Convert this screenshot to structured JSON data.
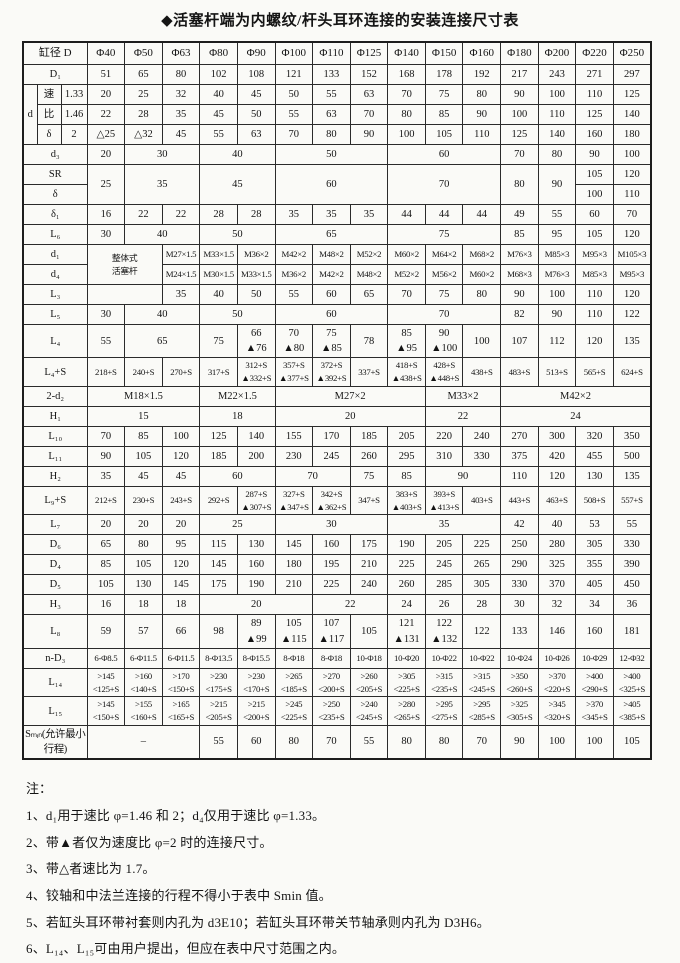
{
  "title": "◆活塞杆端为内螺纹/杆头耳环连接的安装连接尺寸表",
  "table": {
    "rows": [
      {
        "cls": "head",
        "cells": [
          {
            "t": "缸径 D",
            "c": 3
          },
          "Φ40",
          "Φ50",
          "Φ63",
          "Φ80",
          "Φ90",
          "Φ100",
          "Φ110",
          "Φ125",
          "Φ140",
          "Φ150",
          "Φ160",
          "Φ180",
          "Φ200",
          "Φ220",
          "Φ250"
        ]
      },
      {
        "cells": [
          {
            "t": "D₁",
            "c": 3
          },
          "51",
          "65",
          "80",
          "102",
          "108",
          "121",
          "133",
          "152",
          "168",
          "178",
          "192",
          "217",
          "243",
          "271",
          "297"
        ]
      },
      {
        "cells": [
          {
            "t": "d",
            "r": 3
          },
          "速",
          "1.33",
          "20",
          "25",
          "32",
          "40",
          "45",
          "50",
          "55",
          "63",
          "70",
          "75",
          "80",
          "90",
          "100",
          "110",
          "125"
        ]
      },
      {
        "cells": [
          "比",
          "1.46",
          "22",
          "28",
          "35",
          "45",
          "50",
          "55",
          "63",
          "70",
          "80",
          "85",
          "90",
          "100",
          "110",
          "125",
          "140"
        ]
      },
      {
        "cells": [
          "δ",
          "2",
          "△25",
          "△32",
          "45",
          "55",
          "63",
          "70",
          "80",
          "90",
          "100",
          "105",
          "110",
          "125",
          "140",
          "160",
          "180"
        ]
      },
      {
        "cells": [
          {
            "t": "d₃",
            "c": 3
          },
          "20",
          {
            "t": "30",
            "c": 2
          },
          {
            "t": "40",
            "c": 2
          },
          {
            "t": "50",
            "c": 3
          },
          {
            "t": "60",
            "c": 3
          },
          "70",
          "80",
          "90",
          "100"
        ]
      },
      {
        "cells": [
          {
            "t": "SR",
            "c": 3
          },
          {
            "t": "25",
            "r": 2
          },
          {
            "t": "35",
            "c": 2,
            "r": 2
          },
          {
            "t": "45",
            "c": 2,
            "r": 2
          },
          {
            "t": "60",
            "c": 3,
            "r": 2
          },
          {
            "t": "70",
            "c": 3,
            "r": 2
          },
          {
            "t": "80",
            "r": 2
          },
          {
            "t": "90",
            "r": 2
          },
          "105",
          "120"
        ]
      },
      {
        "cells": [
          {
            "t": "δ",
            "c": 3
          },
          "100",
          "110"
        ]
      },
      {
        "cells": [
          {
            "t": "δ₁",
            "c": 3
          },
          "16",
          "22",
          "22",
          "28",
          "28",
          "35",
          "35",
          "35",
          "44",
          "44",
          "44",
          "49",
          "55",
          "60",
          "70"
        ]
      },
      {
        "cells": [
          {
            "t": "L₆",
            "c": 3
          },
          "30",
          {
            "t": "40",
            "c": 2
          },
          {
            "t": "50",
            "c": 2
          },
          {
            "t": "65",
            "c": 3
          },
          {
            "t": "75",
            "c": 3
          },
          "85",
          "95",
          "105",
          "120"
        ]
      },
      {
        "cls": "sm",
        "cells": [
          {
            "t": "d₁",
            "c": 3
          },
          {
            "t": "整体式\n活塞杆",
            "c": 2,
            "r": 2
          },
          "M27×1.5",
          "M33×1.5",
          "M36×2",
          "M42×2",
          "M48×2",
          "M52×2",
          "M60×2",
          "M64×2",
          "M68×2",
          "M76×3",
          "M85×3",
          "M95×3",
          "M105×3"
        ]
      },
      {
        "cls": "sm",
        "cells": [
          {
            "t": "d₄",
            "c": 3
          },
          "M24×1.5",
          "M30×1.5",
          "M33×1.5",
          "M36×2",
          "M42×2",
          "M48×2",
          "M52×2",
          "M56×2",
          "M60×2",
          "M68×3",
          "M76×3",
          "M85×3",
          "M95×3"
        ]
      },
      {
        "cells": [
          {
            "t": "L₃",
            "c": 3
          },
          {
            "t": "",
            "c": 2
          },
          "35",
          "40",
          "50",
          "55",
          "60",
          "65",
          "70",
          "75",
          "80",
          "90",
          "100",
          "110",
          "120"
        ]
      },
      {
        "cells": [
          {
            "t": "L₅",
            "c": 3
          },
          "30",
          {
            "t": "40",
            "c": 2
          },
          {
            "t": "50",
            "c": 2
          },
          {
            "t": "60",
            "c": 3
          },
          {
            "t": "70",
            "c": 3
          },
          "82",
          "90",
          "110",
          "122"
        ]
      },
      {
        "cells": [
          {
            "t": "L₄",
            "c": 3
          },
          "55",
          {
            "t": "65",
            "c": 2
          },
          "75",
          "66\n▲76",
          "70\n▲80",
          "75\n▲85",
          "78",
          "85\n▲95",
          "90\n▲100",
          "100",
          "107",
          "112",
          "120",
          "135"
        ]
      },
      {
        "cls": "sm",
        "cells": [
          {
            "t": "L₄+S",
            "c": 3
          },
          "218+S",
          "240+S",
          "270+S",
          "317+S",
          "312+S\n▲332+S",
          "357+S\n▲377+S",
          "372+S\n▲392+S",
          "337+S",
          "418+S\n▲438+S",
          "428+S\n▲448+S",
          "438+S",
          "483+S",
          "513+S",
          "565+S",
          "624+S"
        ]
      },
      {
        "cells": [
          {
            "t": "2-d₂",
            "c": 3
          },
          {
            "t": "M18×1.5",
            "c": 3
          },
          {
            "t": "M22×1.5",
            "c": 2
          },
          {
            "t": "M27×2",
            "c": 4
          },
          {
            "t": "M33×2",
            "c": 2
          },
          {
            "t": "M42×2",
            "c": 4
          }
        ]
      },
      {
        "cells": [
          {
            "t": "H₁",
            "c": 3
          },
          {
            "t": "15",
            "c": 3
          },
          {
            "t": "18",
            "c": 2
          },
          {
            "t": "20",
            "c": 4
          },
          {
            "t": "22",
            "c": 2
          },
          {
            "t": "24",
            "c": 4
          }
        ]
      },
      {
        "cells": [
          {
            "t": "L₁₀",
            "c": 3
          },
          "70",
          "85",
          "100",
          "125",
          "140",
          "155",
          "170",
          "185",
          "205",
          "220",
          "240",
          "270",
          "300",
          "320",
          "350"
        ]
      },
      {
        "cells": [
          {
            "t": "L₁₁",
            "c": 3
          },
          "90",
          "105",
          "120",
          "185",
          "200",
          "230",
          "245",
          "260",
          "295",
          "310",
          "330",
          "375",
          "420",
          "455",
          "500"
        ]
      },
      {
        "cells": [
          {
            "t": "H₂",
            "c": 3
          },
          "35",
          "45",
          "45",
          {
            "t": "60",
            "c": 2
          },
          {
            "t": "70",
            "c": 2
          },
          "75",
          "85",
          {
            "t": "90",
            "c": 2
          },
          "110",
          "120",
          "130",
          "135"
        ]
      },
      {
        "cls": "sm",
        "cells": [
          {
            "t": "L₉+S",
            "c": 3
          },
          "212+S",
          "230+S",
          "243+S",
          "292+S",
          "287+S\n▲307+S",
          "327+S\n▲347+S",
          "342+S\n▲362+S",
          "347+S",
          "383+S\n▲403+S",
          "393+S\n▲413+S",
          "403+S",
          "443+S",
          "463+S",
          "508+S",
          "557+S"
        ]
      },
      {
        "cells": [
          {
            "t": "L₇",
            "c": 3
          },
          "20",
          "20",
          "20",
          {
            "t": "25",
            "c": 2
          },
          {
            "t": "30",
            "c": 3
          },
          {
            "t": "35",
            "c": 3
          },
          "42",
          "40",
          "53",
          "55"
        ]
      },
      {
        "cells": [
          {
            "t": "D₆",
            "c": 3
          },
          "65",
          "80",
          "95",
          "115",
          "130",
          "145",
          "160",
          "175",
          "190",
          "205",
          "225",
          "250",
          "280",
          "305",
          "330"
        ]
      },
      {
        "cells": [
          {
            "t": "D₄",
            "c": 3
          },
          "85",
          "105",
          "120",
          "145",
          "160",
          "180",
          "195",
          "210",
          "225",
          "245",
          "265",
          "290",
          "325",
          "355",
          "390"
        ]
      },
      {
        "cells": [
          {
            "t": "D₅",
            "c": 3
          },
          "105",
          "130",
          "145",
          "175",
          "190",
          "210",
          "225",
          "240",
          "260",
          "285",
          "305",
          "330",
          "370",
          "405",
          "450"
        ]
      },
      {
        "cells": [
          {
            "t": "H₃",
            "c": 3
          },
          "16",
          "18",
          "18",
          {
            "t": "20",
            "c": 3
          },
          {
            "t": "22",
            "c": 2
          },
          "24",
          "26",
          "28",
          "30",
          "32",
          "34",
          "36"
        ]
      },
      {
        "cells": [
          {
            "t": "L₈",
            "c": 3
          },
          "59",
          "57",
          "66",
          "98",
          "89\n▲99",
          "105\n▲115",
          "107\n▲117",
          "105",
          "121\n▲131",
          "122\n▲132",
          "122",
          "133",
          "146",
          "160",
          "181"
        ]
      },
      {
        "cls": "sm",
        "cells": [
          {
            "t": "n-D₃",
            "c": 3
          },
          "6-Φ8.5",
          "6-Φ11.5",
          "6-Φ11.5",
          "8-Φ13.5",
          "8-Φ15.5",
          "8-Φ18",
          "8-Φ18",
          "10-Φ18",
          "10-Φ20",
          "10-Φ22",
          "10-Φ22",
          "10-Φ24",
          "10-Φ26",
          "10-Φ29",
          "12-Φ32"
        ]
      },
      {
        "cls": "sm",
        "cells": [
          {
            "t": "L₁₄",
            "c": 3
          },
          ">145\n<125+S",
          ">160\n<140+S",
          ">170\n<150+S",
          ">230\n<175+S",
          ">230\n<170+S",
          ">265\n<185+S",
          ">270\n<200+S",
          ">260\n<205+S",
          ">305\n<225+S",
          ">315\n<235+S",
          ">315\n<245+S",
          ">350\n<260+S",
          ">370\n<220+S",
          ">400\n<290+S",
          ">400\n<325+S"
        ]
      },
      {
        "cls": "sm",
        "cells": [
          {
            "t": "L₁₅",
            "c": 3
          },
          ">145\n<150+S",
          ">155\n<160+S",
          ">165\n<165+S",
          ">215\n<205+S",
          ">215\n<200+S",
          ">245\n<225+S",
          ">250\n<235+S",
          ">240\n<245+S",
          ">280\n<265+S",
          ">295\n<275+S",
          ">295\n<285+S",
          ">325\n<305+S",
          ">345\n<320+S",
          ">370\n<345+S",
          ">405\n<385+S"
        ]
      },
      {
        "cells": [
          {
            "t": "Sₘᵢₙ(允许最小行程)",
            "c": 3,
            "cls": "xs"
          },
          {
            "t": "–",
            "c": 3
          },
          "55",
          "60",
          "80",
          "70",
          "55",
          "80",
          "80",
          "70",
          "90",
          "100",
          "100",
          "105"
        ]
      }
    ]
  },
  "notes": {
    "heading": "注：",
    "items": [
      "1、d₁用于速比 φ=1.46 和 2；d₄仅用于速比 φ=1.33。",
      "2、带▲者仅为速度比 φ=2 时的连接尺寸。",
      "3、带△者速比为 1.7。",
      "4、铰轴和中法兰连接的行程不得小于表中 Smin 值。",
      "5、若缸头耳环带衬套则内孔为 d3E10；若缸头耳环带关节轴承则内孔为 D3H6。",
      "6、L₁₄、L₁₅可由用户提出，但应在表中尺寸范围之内。"
    ]
  }
}
